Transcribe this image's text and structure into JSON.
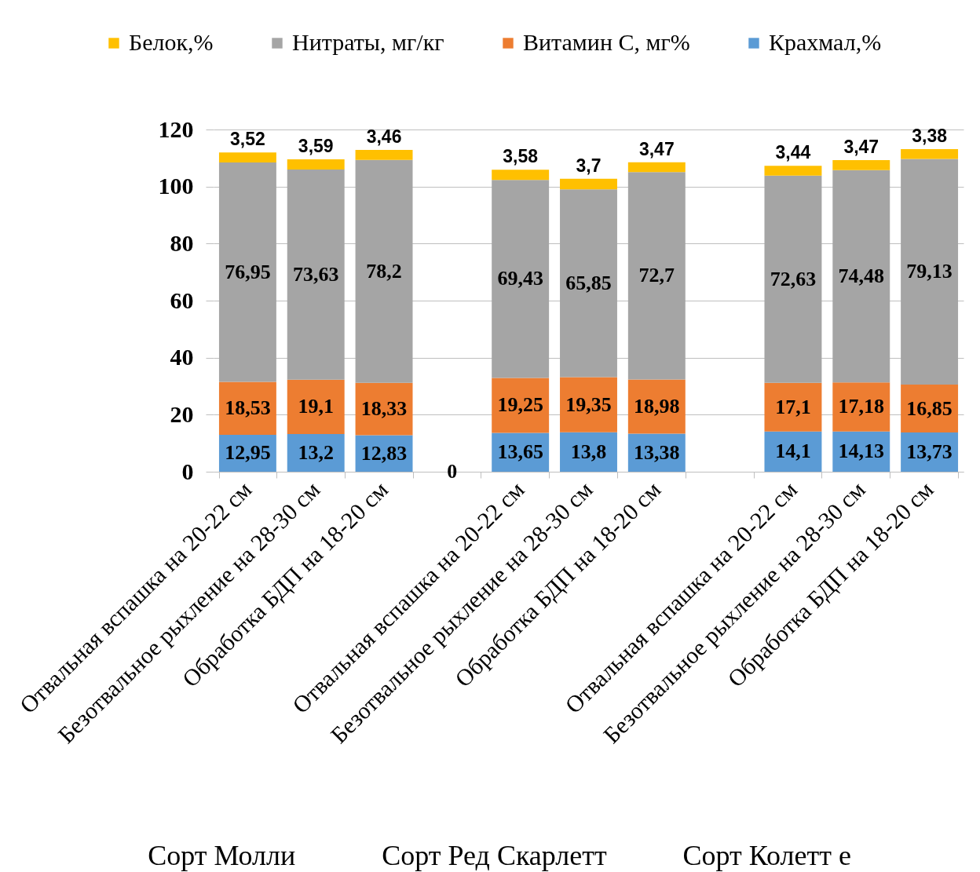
{
  "chart_data": {
    "type": "bar",
    "stacked": true,
    "categories": [
      "Отвальная вспашка на 20-22 см",
      "Безотвальное рыхление на 28-30 см",
      "Обработка  БДП на 18-20  см",
      null,
      "Отвальная вспашка на 20-22 см",
      "Безотвальное рыхление на 28-30 см",
      "Обработка БДП на 18-20 см",
      null,
      "Отвальная вспашка на 20-22 см",
      "Безотвальное рыхление на 28-30 см",
      "Обработка БДП на 18-20 см"
    ],
    "series": [
      {
        "name": "Крахмал,%",
        "color": "#5b9bd5",
        "values": [
          12.95,
          13.2,
          12.83,
          0,
          13.65,
          13.8,
          13.38,
          null,
          14.1,
          14.13,
          13.73
        ],
        "value_labels": [
          "12,95",
          "13,2",
          "12,83",
          "0",
          "13,65",
          "13,8",
          "13,38",
          null,
          "14,1",
          "14,13",
          "13,73"
        ]
      },
      {
        "name": "Витамин С, мг%",
        "color": "#ed7d31",
        "values": [
          18.53,
          19.1,
          18.33,
          null,
          19.25,
          19.35,
          18.98,
          null,
          17.1,
          17.18,
          16.85
        ],
        "value_labels": [
          "18,53",
          "19,1",
          "18,33",
          null,
          "19,25",
          "19,35",
          "18,98",
          null,
          "17,1",
          "17,18",
          "16,85"
        ]
      },
      {
        "name": "Нитраты, мг/кг",
        "color": "#a5a5a5",
        "values": [
          76.95,
          73.63,
          78.2,
          null,
          69.43,
          65.85,
          72.7,
          null,
          72.63,
          74.48,
          79.13
        ],
        "value_labels": [
          "76,95",
          "73,63",
          "78,2",
          null,
          "69,43",
          "65,85",
          "72,7",
          null,
          "72,63",
          "74,48",
          "79,13"
        ]
      },
      {
        "name": "Белок,%",
        "color": "#ffc000",
        "values": [
          3.52,
          3.59,
          3.46,
          null,
          3.58,
          3.7,
          3.47,
          null,
          3.44,
          3.47,
          3.38
        ],
        "value_labels": [
          "3,52",
          "3,59",
          "3,46",
          null,
          "3,58",
          "3,7",
          "3,47",
          null,
          "3,44",
          "3,47",
          "3,38"
        ]
      }
    ],
    "ylim": [
      0,
      120
    ],
    "yticks": [
      0,
      20,
      40,
      60,
      80,
      100,
      120
    ],
    "grid": "y",
    "legend": "top",
    "annotations": [
      "Сорт Молли",
      "Сорт Ред Скарлетт",
      "Сорт Колетт е"
    ]
  }
}
